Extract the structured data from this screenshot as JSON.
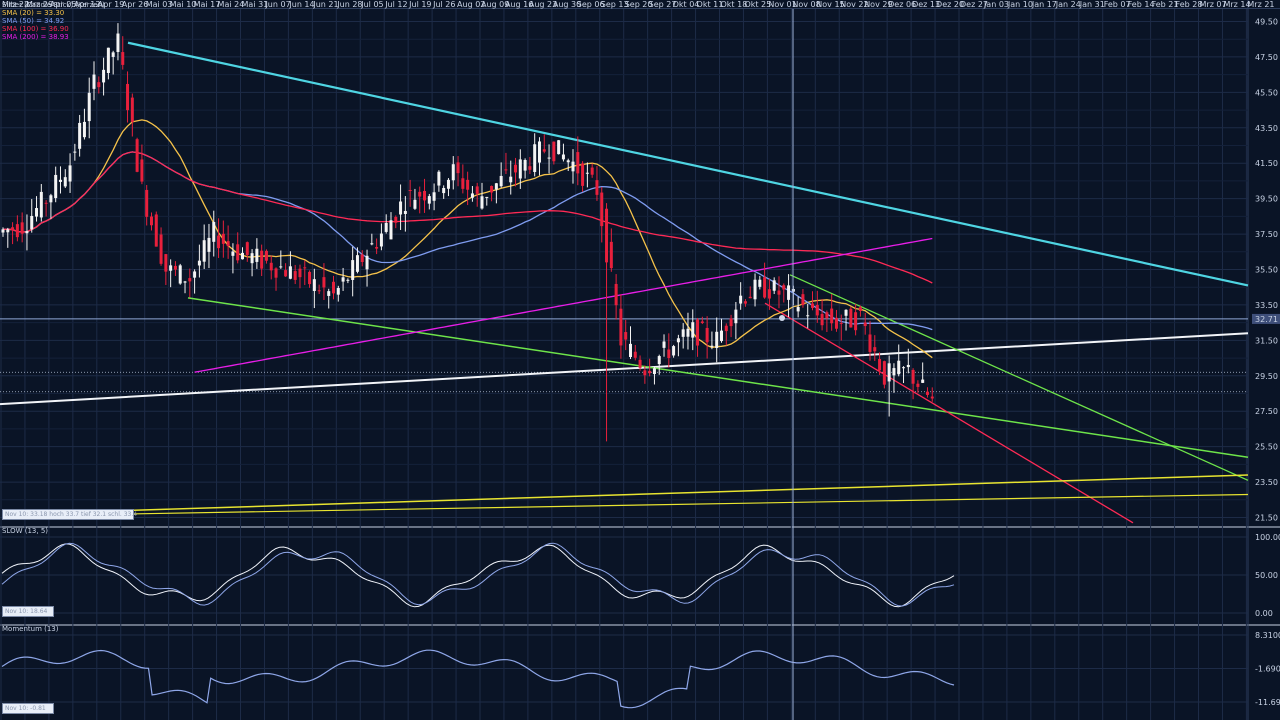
{
  "dates": [
    "Mrz 22",
    "Mrz 29",
    "Apr 05",
    "Apr 12",
    "Apr 19",
    "Apr 26",
    "Mai 03",
    "Mai 10",
    "Mai 17",
    "Mai 24",
    "Mai 31",
    "Jun 07",
    "Jun 14",
    "Jun 21",
    "Jun 28",
    "Jul 05",
    "Jul 12",
    "Jul 19",
    "Jul 26",
    "Aug 02",
    "Aug 09",
    "Aug 16",
    "Aug 23",
    "Aug 30",
    "Sep 06",
    "Sep 13",
    "Sep 20",
    "Sep 27",
    "Okt 04",
    "Okt 11",
    "Okt 18",
    "Okt 25",
    "Nov 01",
    "Nov 08",
    "Nov 15",
    "Nov 22",
    "Nov 29",
    "Dez 06",
    "Dez 13",
    "Dez 20",
    "Dez 27",
    "Jan 03",
    "Jan 10",
    "Jan 17",
    "Jan 24",
    "Jan 31",
    "Feb 07",
    "Feb 14",
    "Feb 21",
    "Feb 28",
    "Mrz 07",
    "Mrz 14",
    "Mrz 21"
  ],
  "price_panel": {
    "title": "Silber (Candle Stick) (Kerzen)",
    "legend": [
      {
        "text": "SMA (20) = 33.30",
        "color": "#f5c24a"
      },
      {
        "text": "SMA (50) = 34.92",
        "color": "#7f9cf0"
      },
      {
        "text": "SMA (100) = 36.90",
        "color": "#ff2a55"
      },
      {
        "text": "SMA (200) = 38.93",
        "color": "#e81ee8"
      }
    ],
    "ticks": [
      "49.50",
      "47.50",
      "45.50",
      "43.50",
      "41.50",
      "39.50",
      "37.50",
      "35.50",
      "33.50",
      "31.50",
      "29.50",
      "27.50",
      "25.50",
      "23.50",
      "21.50"
    ],
    "last_price_label": "32.71"
  },
  "stoch_panel": {
    "title": "SLOW (13, 5)",
    "ticks": [
      "100.00",
      "50.00",
      "0.00"
    ]
  },
  "momentum_panel": {
    "title": "Momentum (13)",
    "ticks": [
      "8.3100",
      "-1.6900",
      "-11.6900"
    ]
  },
  "boxes": {
    "price_box": "Nov 10: 33.18  hoch 33.7 tief 32.1 schl. 33.4",
    "stoch_box": "Nov 10: 18.64",
    "momentum_box": "Nov 10: -0.81"
  },
  "chart_data": {
    "type": "candlestick",
    "title": "Silber (Candle Stick) (Kerzen)",
    "xlabel": "",
    "ylabel": "",
    "ylim": [
      20.5,
      50.5
    ],
    "x_ticks": [
      "Mrz 22",
      "Mrz 29",
      "Apr 05",
      "Apr 12",
      "Apr 19",
      "Apr 26",
      "Mai 03",
      "Mai 10",
      "Mai 17",
      "Mai 24",
      "Mai 31",
      "Jun 07",
      "Jun 14",
      "Jun 21",
      "Jun 28",
      "Jul 05",
      "Jul 12",
      "Jul 19",
      "Jul 26",
      "Aug 02",
      "Aug 09",
      "Aug 16",
      "Aug 23",
      "Aug 30",
      "Sep 06",
      "Sep 13",
      "Sep 20",
      "Sep 27",
      "Okt 04",
      "Okt 11",
      "Okt 18",
      "Okt 25",
      "Nov 01",
      "Nov 08",
      "Nov 15",
      "Nov 22",
      "Nov 29",
      "Dez 06",
      "Dez 13",
      "Dez 20",
      "Dez 27",
      "Jan 03",
      "Jan 10",
      "Jan 17",
      "Jan 24",
      "Jan 31",
      "Feb 07",
      "Feb 14",
      "Feb 21",
      "Feb 28",
      "Mrz 07",
      "Mrz 14",
      "Mrz 21"
    ],
    "closes_weekly_approx": [
      {
        "x": "Mrz 22",
        "close": 37.6
      },
      {
        "x": "Mrz 29",
        "close": 38.0
      },
      {
        "x": "Apr 05",
        "close": 39.5
      },
      {
        "x": "Apr 12",
        "close": 41.5
      },
      {
        "x": "Apr 19",
        "close": 46.0
      },
      {
        "x": "Apr 26",
        "close": 48.3
      },
      {
        "x": "Mai 03",
        "close": 40.0
      },
      {
        "x": "Mai 10",
        "close": 35.5
      },
      {
        "x": "Mai 17",
        "close": 35.0
      },
      {
        "x": "Mai 24",
        "close": 37.5
      },
      {
        "x": "Mai 31",
        "close": 36.5
      },
      {
        "x": "Jun 07",
        "close": 36.0
      },
      {
        "x": "Jun 14",
        "close": 35.5
      },
      {
        "x": "Jun 21",
        "close": 34.8
      },
      {
        "x": "Jun 28",
        "close": 34.0
      },
      {
        "x": "Jul 05",
        "close": 35.8
      },
      {
        "x": "Jul 12",
        "close": 37.5
      },
      {
        "x": "Jul 19",
        "close": 39.5
      },
      {
        "x": "Jul 26",
        "close": 40.0
      },
      {
        "x": "Aug 02",
        "close": 41.0
      },
      {
        "x": "Aug 09",
        "close": 39.5
      },
      {
        "x": "Aug 16",
        "close": 40.5
      },
      {
        "x": "Aug 23",
        "close": 41.5
      },
      {
        "x": "Aug 30",
        "close": 42.5
      },
      {
        "x": "Sep 06",
        "close": 41.5
      },
      {
        "x": "Sep 13",
        "close": 40.0
      },
      {
        "x": "Sep 20",
        "close": 31.5
      },
      {
        "x": "Sep 27",
        "close": 30.0
      },
      {
        "x": "Okt 04",
        "close": 31.0
      },
      {
        "x": "Okt 11",
        "close": 32.0
      },
      {
        "x": "Okt 18",
        "close": 31.5
      },
      {
        "x": "Okt 25",
        "close": 34.0
      },
      {
        "x": "Nov 01",
        "close": 34.5
      },
      {
        "x": "Nov 08",
        "close": 34.0
      },
      {
        "x": "Nov 15",
        "close": 33.0
      },
      {
        "x": "Nov 22",
        "close": 32.5
      },
      {
        "x": "Nov 29",
        "close": 32.8
      },
      {
        "x": "Dez 06",
        "close": 29.5
      },
      {
        "x": "Dez 13",
        "close": 29.8
      },
      {
        "x": "Dez 20",
        "close": 28.0
      }
    ],
    "indicators": [
      {
        "name": "SMA (20) = 33.30",
        "color": "#f5c24a",
        "last": 33.3
      },
      {
        "name": "SMA (50) = 34.92",
        "color": "#7f9cf0",
        "last": 34.92
      },
      {
        "name": "SMA (100) = 36.90",
        "color": "#ff2a55",
        "last": 36.9
      },
      {
        "name": "SMA (200) = 38.93",
        "color": "#e81ee8",
        "last": 38.93
      }
    ],
    "grid": true,
    "legend_placement": "top-left"
  }
}
